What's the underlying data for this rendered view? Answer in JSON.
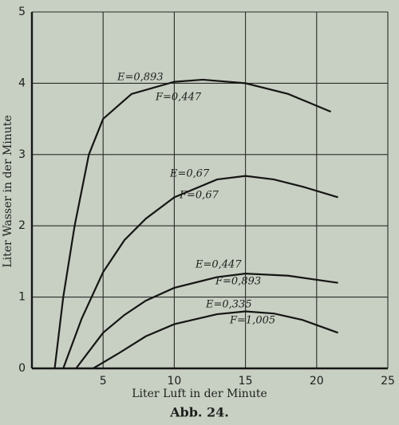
{
  "chart_data": {
    "type": "line",
    "title": "Abb. 24.",
    "x_label": "Liter Luft in der Minute",
    "y_label": "Liter Wasser in der Minute",
    "xlim": [
      0,
      25
    ],
    "ylim": [
      0,
      5
    ],
    "xticks": [
      5,
      10,
      15,
      20,
      25
    ],
    "yticks": [
      0,
      1,
      2,
      3,
      4,
      5
    ],
    "grid": true,
    "color": "#151614",
    "series": [
      {
        "labels": [
          "E=0,893",
          "F=0,447"
        ],
        "x": [
          1.6,
          2.2,
          3,
          4,
          5,
          7,
          10,
          12,
          15,
          18,
          21
        ],
        "values": [
          0,
          1.0,
          2.0,
          3.0,
          3.5,
          3.85,
          4.02,
          4.05,
          4.0,
          3.85,
          3.6
        ]
      },
      {
        "labels": [
          "E=0,67",
          "F=0,67"
        ],
        "x": [
          2.2,
          3.5,
          5,
          6.5,
          8,
          10,
          13,
          15,
          17,
          19,
          21.5
        ],
        "values": [
          0,
          0.7,
          1.35,
          1.8,
          2.1,
          2.4,
          2.65,
          2.7,
          2.65,
          2.55,
          2.4
        ]
      },
      {
        "labels": [
          "E=0,447",
          "F=0,893"
        ],
        "x": [
          3.1,
          5,
          6.5,
          8,
          10,
          13,
          15,
          18,
          21.5
        ],
        "values": [
          0,
          0.5,
          0.75,
          0.95,
          1.13,
          1.28,
          1.33,
          1.3,
          1.2
        ]
      },
      {
        "labels": [
          "E=0,335",
          "F=1,005"
        ],
        "x": [
          4.3,
          6,
          8,
          10,
          13,
          15,
          17,
          19,
          21.5
        ],
        "values": [
          0,
          0.2,
          0.45,
          0.62,
          0.76,
          0.8,
          0.77,
          0.68,
          0.5
        ]
      }
    ]
  }
}
